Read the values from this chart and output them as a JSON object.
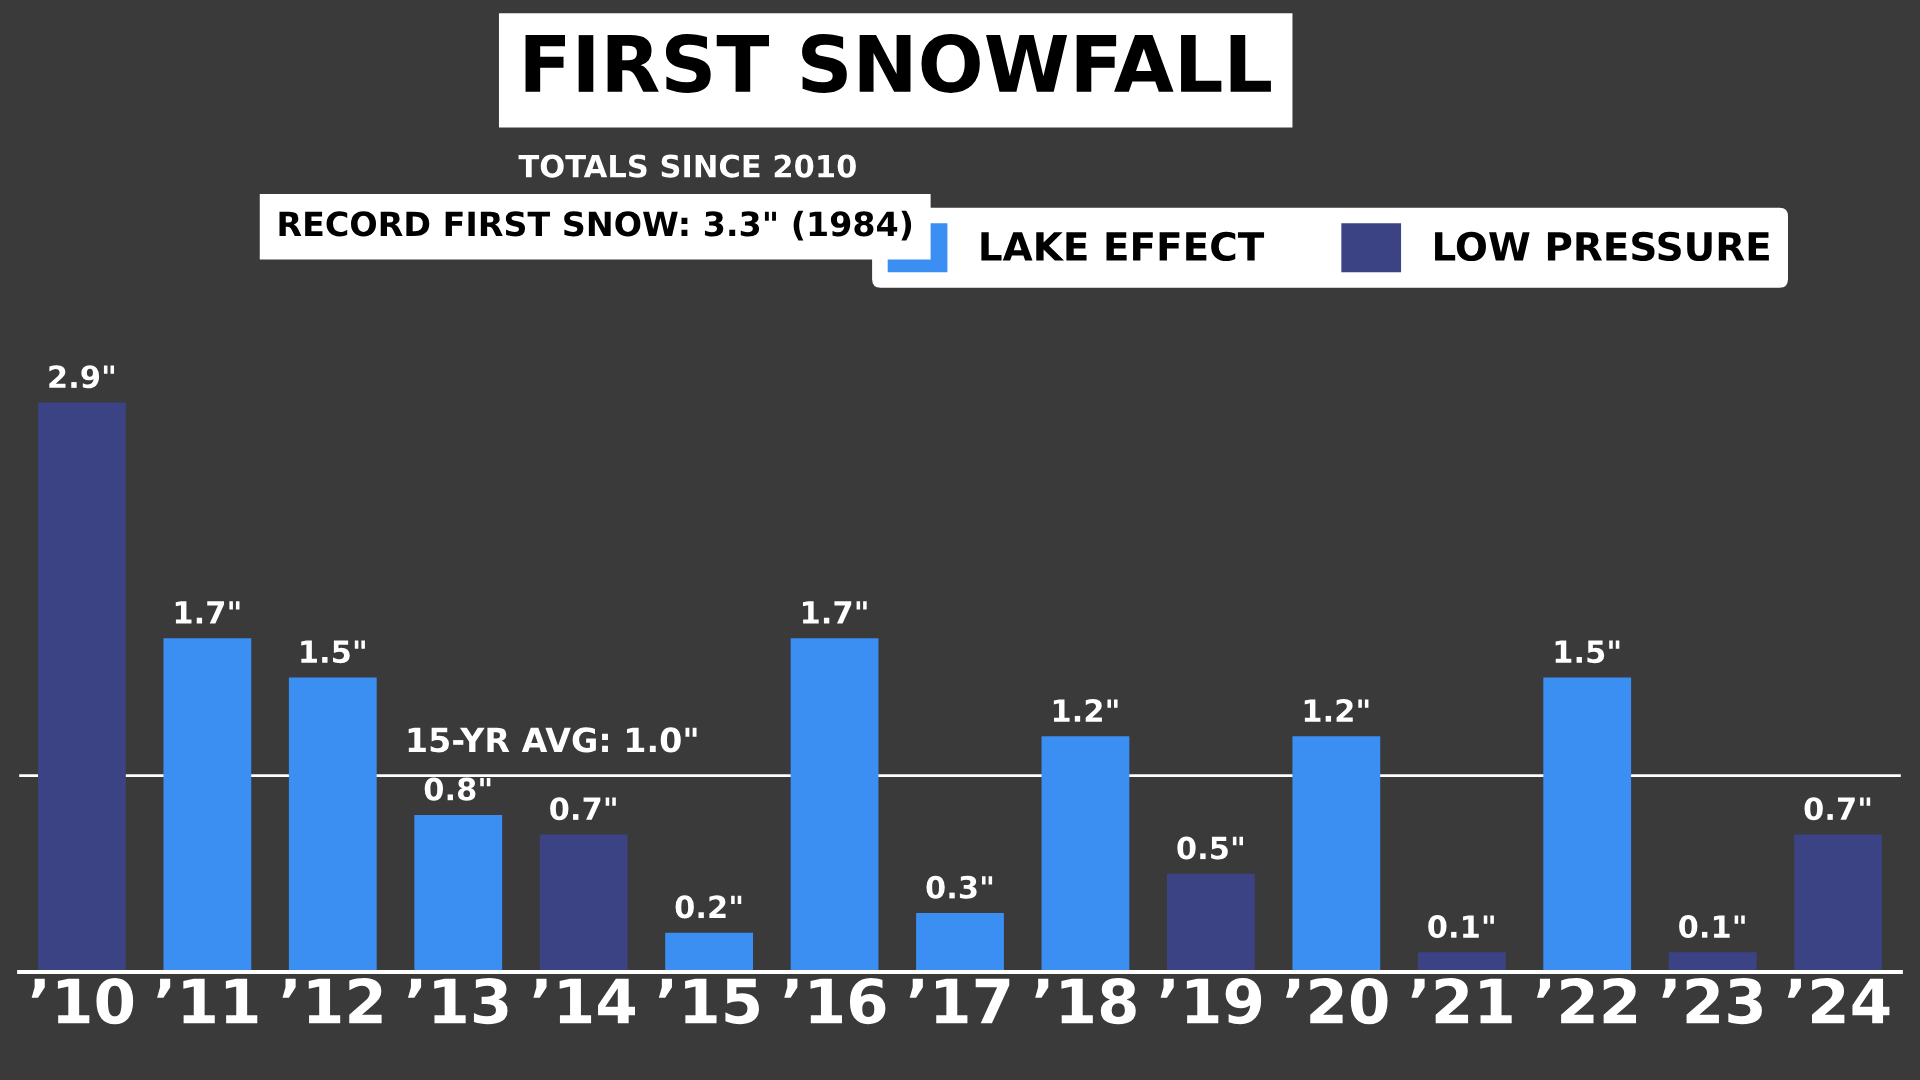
{
  "chart_data": {
    "type": "bar",
    "title": "FIRST SNOWFALL",
    "subtitle": "TOTALS SINCE 2010",
    "categories": [
      "’10",
      "’11",
      "’12",
      "’13",
      "’14",
      "’15",
      "’16",
      "’17",
      "’18",
      "’19",
      "’20",
      "’21",
      "’22",
      "’23",
      "’24"
    ],
    "series": [
      {
        "name": "LAKE EFFECT",
        "color": "#3b8ef2",
        "values": [
          null,
          1.7,
          1.5,
          0.8,
          null,
          0.2,
          1.7,
          0.3,
          1.2,
          null,
          1.2,
          null,
          1.5,
          null,
          null
        ],
        "value_labels": [
          null,
          "1.7\"",
          "1.5\"",
          "0.8\"",
          null,
          "0.2\"",
          "1.7\"",
          "0.3\"",
          "1.2\"",
          null,
          "1.2\"",
          null,
          "1.5\"",
          null,
          null
        ]
      },
      {
        "name": "LOW PRESSURE",
        "color": "#3b4385",
        "values": [
          2.9,
          null,
          null,
          null,
          0.7,
          null,
          null,
          null,
          null,
          0.5,
          null,
          0.1,
          null,
          0.1,
          0.7
        ],
        "value_labels": [
          "2.9\"",
          null,
          null,
          null,
          "0.7\"",
          null,
          null,
          null,
          null,
          "0.5\"",
          null,
          "0.1\"",
          null,
          "0.1\"",
          "0.7\""
        ]
      }
    ],
    "legend": "top right",
    "tick_labels": "x",
    "grid": false,
    "ref_lines": [
      {
        "axis": "y",
        "value": 1.0,
        "label": "15-YR AVG: 1.0\"",
        "color": "#ffffff"
      }
    ],
    "annotations": [
      "RECORD FIRST SNOW: 3.3\" (1984)"
    ]
  }
}
